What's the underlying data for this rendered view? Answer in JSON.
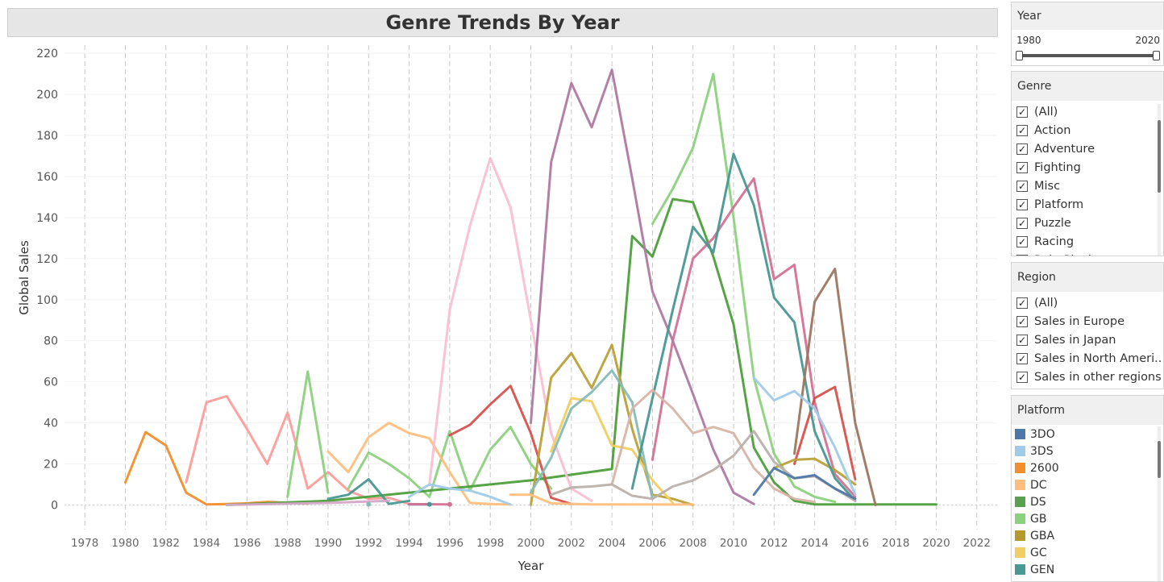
{
  "title": "Genre Trends By Year",
  "chart_data": {
    "type": "line",
    "title": "Genre Trends By Year",
    "xlabel": "Year",
    "ylabel": "Global Sales",
    "xlim": [
      1977,
      2023
    ],
    "ylim": [
      -12,
      224
    ],
    "xticks": [
      "1978",
      "1980",
      "1982",
      "1984",
      "1986",
      "1988",
      "1990",
      "1992",
      "1994",
      "1996",
      "1998",
      "2000",
      "2002",
      "2004",
      "2006",
      "2008",
      "2010",
      "2012",
      "2014",
      "2016",
      "2018",
      "2020",
      "2022"
    ],
    "yticks": [
      "0",
      "20",
      "40",
      "60",
      "80",
      "100",
      "120",
      "140",
      "160",
      "180",
      "200",
      "220"
    ],
    "grid": "vertical dashed",
    "series": [
      {
        "color": "#f28e2b",
        "points": [
          [
            1980,
            11
          ],
          [
            1981,
            35.5
          ],
          [
            1982,
            29
          ],
          [
            1983,
            6
          ],
          [
            1984,
            0.3
          ],
          [
            1985,
            0.5
          ],
          [
            1986,
            0.8
          ],
          [
            1987,
            1.5
          ],
          [
            1988,
            1
          ],
          [
            1989,
            0.7
          ]
        ]
      },
      {
        "color": "#ff9d9a",
        "points": [
          [
            1983,
            11
          ],
          [
            1984,
            50
          ],
          [
            1985,
            53
          ],
          [
            1986,
            37
          ],
          [
            1987,
            20
          ],
          [
            1988,
            45
          ],
          [
            1989,
            8
          ],
          [
            1990,
            16
          ],
          [
            1991,
            7
          ],
          [
            1992,
            3
          ],
          [
            1993,
            3.5
          ],
          [
            1994,
            0.5
          ]
        ]
      },
      {
        "color": "#8cd17d",
        "points": [
          [
            1988,
            4
          ],
          [
            1989,
            65
          ],
          [
            1990,
            6
          ]
        ]
      },
      {
        "color": "#8cd17d",
        "points": [
          [
            1991,
            8
          ],
          [
            1992,
            25.5
          ],
          [
            1993,
            20
          ],
          [
            1994,
            13
          ],
          [
            1995,
            4
          ],
          [
            1996,
            36
          ],
          [
            1997,
            7
          ],
          [
            1998,
            27
          ],
          [
            1999,
            38
          ],
          [
            2000,
            20
          ],
          [
            2001,
            8
          ]
        ]
      },
      {
        "color": "#8cd17d",
        "points": [
          [
            2006,
            137
          ],
          [
            2007,
            154
          ],
          [
            2008,
            174
          ],
          [
            2009,
            210
          ],
          [
            2010,
            140
          ],
          [
            2011,
            62
          ],
          [
            2012,
            25
          ],
          [
            2013,
            9
          ],
          [
            2014,
            4
          ],
          [
            2015,
            1.5
          ]
        ]
      },
      {
        "color": "#ffbe7d",
        "points": [
          [
            1990,
            26
          ],
          [
            1991,
            16
          ],
          [
            1992,
            33
          ],
          [
            1993,
            40
          ],
          [
            1994,
            35
          ],
          [
            1995,
            32.5
          ],
          [
            1996,
            16
          ],
          [
            1997,
            1
          ],
          [
            1998,
            0.5
          ],
          [
            1999,
            0.2
          ]
        ]
      },
      {
        "color": "#4e9f3d",
        "points": [
          [
            1985,
            0
          ],
          [
            1990,
            2
          ],
          [
            1995,
            7
          ],
          [
            2000,
            12
          ],
          [
            2004,
            17.5
          ],
          [
            2005,
            131
          ],
          [
            2006,
            121
          ],
          [
            2007,
            149
          ],
          [
            2008,
            147.5
          ],
          [
            2009,
            121
          ],
          [
            2010,
            88
          ],
          [
            2011,
            28
          ],
          [
            2012,
            11
          ],
          [
            2013,
            2
          ],
          [
            2014,
            0.3
          ],
          [
            2016,
            0.3
          ],
          [
            2020,
            0.3
          ]
        ]
      },
      {
        "color": "#fabfd2",
        "points": [
          [
            1995,
            10
          ],
          [
            1996,
            95
          ],
          [
            1997,
            136
          ],
          [
            1998,
            169
          ],
          [
            1999,
            145
          ],
          [
            2000,
            90
          ],
          [
            2001,
            35
          ],
          [
            2002,
            8
          ],
          [
            2003,
            2
          ]
        ]
      },
      {
        "color": "#d37295",
        "points": [
          [
            2006,
            22
          ],
          [
            2007,
            80
          ],
          [
            2008,
            120
          ],
          [
            2009,
            130
          ],
          [
            2010,
            145
          ],
          [
            2011,
            159
          ],
          [
            2012,
            110
          ],
          [
            2013,
            117
          ],
          [
            2014,
            50
          ],
          [
            2015,
            15
          ],
          [
            2016,
            4
          ]
        ]
      },
      {
        "color": "#b07aa1",
        "points": [
          [
            2000,
            40
          ],
          [
            2001,
            167
          ],
          [
            2002,
            205.5
          ],
          [
            2003,
            184
          ],
          [
            2004,
            212
          ],
          [
            2005,
            159
          ],
          [
            2006,
            104
          ],
          [
            2007,
            80
          ],
          [
            2008,
            54
          ],
          [
            2009,
            27
          ],
          [
            2010,
            6
          ],
          [
            2011,
            0.5
          ]
        ]
      },
      {
        "color": "#d6524f",
        "points": [
          [
            1996,
            34
          ],
          [
            1997,
            39
          ],
          [
            1998,
            49
          ],
          [
            1999,
            58
          ],
          [
            2000,
            35
          ],
          [
            2001,
            3.5
          ],
          [
            2002,
            0.5
          ]
        ]
      },
      {
        "color": "#d6524f",
        "points": [
          [
            2013,
            20
          ],
          [
            2014,
            52
          ],
          [
            2015,
            57.5
          ],
          [
            2016,
            12.5
          ]
        ]
      },
      {
        "color": "#b9a139",
        "points": [
          [
            2000,
            0
          ],
          [
            2001,
            62
          ],
          [
            2002,
            74
          ],
          [
            2003,
            57
          ],
          [
            2004,
            78
          ],
          [
            2005,
            37
          ],
          [
            2006,
            5
          ],
          [
            2007,
            3
          ],
          [
            2008,
            0
          ]
        ]
      },
      {
        "color": "#b9a139",
        "points": [
          [
            2012,
            18
          ],
          [
            2013,
            22
          ],
          [
            2014,
            22.5
          ],
          [
            2015,
            17
          ],
          [
            2016,
            10
          ]
        ]
      },
      {
        "color": "#f1ce63",
        "points": [
          [
            2001,
            26
          ],
          [
            2002,
            52
          ],
          [
            2003,
            50.5
          ],
          [
            2004,
            29
          ],
          [
            2005,
            27
          ],
          [
            2006,
            12
          ],
          [
            2007,
            1
          ]
        ]
      },
      {
        "color": "#86bcb6",
        "points": [
          [
            2000,
            6
          ],
          [
            2001,
            23
          ],
          [
            2002,
            47
          ],
          [
            2003,
            55
          ],
          [
            2004,
            65.5
          ],
          [
            2005,
            50
          ],
          [
            2006,
            3
          ]
        ]
      },
      {
        "color": "#499894",
        "points": [
          [
            1990,
            3
          ],
          [
            1991,
            5
          ],
          [
            1992,
            12.5
          ],
          [
            1993,
            0.5
          ],
          [
            1994,
            2
          ]
        ]
      },
      {
        "color": "#499894",
        "points": [
          [
            2005,
            8
          ],
          [
            2006,
            52
          ],
          [
            2007,
            95
          ],
          [
            2008,
            135.5
          ],
          [
            2009,
            123
          ],
          [
            2010,
            171
          ],
          [
            2011,
            146
          ],
          [
            2012,
            101
          ],
          [
            2013,
            89
          ],
          [
            2014,
            36
          ],
          [
            2015,
            13
          ],
          [
            2016,
            2
          ]
        ]
      },
      {
        "color": "#d4a6c8",
        "points": [
          [
            1985,
            0
          ],
          [
            1990,
            1
          ],
          [
            1993,
            2
          ]
        ]
      },
      {
        "color": "#d7b5a6",
        "points": [
          [
            2004,
            10
          ],
          [
            2005,
            47
          ],
          [
            2006,
            56
          ],
          [
            2007,
            47
          ],
          [
            2008,
            35
          ],
          [
            2009,
            38
          ],
          [
            2010,
            35
          ],
          [
            2011,
            18
          ],
          [
            2012,
            8
          ],
          [
            2013,
            3
          ],
          [
            2014,
            1.5
          ]
        ]
      },
      {
        "color": "#bab0ac",
        "points": [
          [
            2001,
            5
          ],
          [
            2002,
            8.5
          ],
          [
            2003,
            9
          ],
          [
            2004,
            10
          ],
          [
            2005,
            4.5
          ],
          [
            2006,
            3
          ],
          [
            2007,
            9
          ],
          [
            2008,
            12
          ],
          [
            2009,
            17
          ],
          [
            2010,
            24
          ],
          [
            2011,
            36
          ],
          [
            2012,
            21
          ],
          [
            2013,
            13
          ],
          [
            2014,
            14
          ],
          [
            2015,
            8
          ],
          [
            2016,
            2
          ]
        ]
      },
      {
        "color": "#9d7660",
        "points": [
          [
            2013,
            25
          ],
          [
            2014,
            99
          ],
          [
            2015,
            115
          ],
          [
            2016,
            40
          ],
          [
            2017,
            0
          ]
        ]
      },
      {
        "color": "#a0cbe8",
        "points": [
          [
            1994,
            4
          ],
          [
            1995,
            10
          ],
          [
            1996,
            8
          ],
          [
            1997,
            7
          ],
          [
            1998,
            4
          ],
          [
            1999,
            0.2
          ]
        ]
      },
      {
        "color": "#a0cbe8",
        "points": [
          [
            2011,
            62
          ],
          [
            2012,
            51
          ],
          [
            2013,
            55.5
          ],
          [
            2014,
            47
          ],
          [
            2015,
            28
          ],
          [
            2016,
            5
          ]
        ]
      },
      {
        "color": "#4e79a7",
        "points": [
          [
            2011,
            5
          ],
          [
            2012,
            18
          ],
          [
            2013,
            13
          ],
          [
            2014,
            14.5
          ],
          [
            2015,
            8
          ],
          [
            2016,
            3
          ]
        ]
      },
      {
        "color": "#4e79a7",
        "points": [
          [
            1994,
            0.3
          ],
          [
            1995,
            0.3
          ]
        ]
      },
      {
        "color": "#ffbe7d",
        "points": [
          [
            1999,
            5
          ],
          [
            2000,
            5
          ],
          [
            2001,
            0.8
          ],
          [
            2003,
            0.3
          ],
          [
            2008,
            0.2
          ]
        ]
      },
      {
        "color": "#d37295",
        "points": [
          [
            1994,
            0.4
          ],
          [
            1996,
            0.3
          ]
        ]
      }
    ],
    "markers": [
      {
        "color": "#86bcb6",
        "point": [
          1992,
          0.3
        ]
      },
      {
        "color": "#499894",
        "point": [
          1995,
          0.3
        ]
      },
      {
        "color": "#d37295",
        "point": [
          1996,
          0.3
        ]
      }
    ]
  },
  "filters": {
    "year": {
      "label": "Year",
      "min": "1980",
      "max": "2020"
    },
    "genre": {
      "label": "Genre",
      "items": [
        "(All)",
        "Action",
        "Adventure",
        "Fighting",
        "Misc",
        "Platform",
        "Puzzle",
        "Racing",
        "Role-Playing"
      ]
    },
    "region": {
      "label": "Region",
      "items": [
        "(All)",
        "Sales in Europe",
        "Sales in Japan",
        "Sales in North Ameri...",
        "Sales in other regions"
      ]
    },
    "platform": {
      "label": "Platform",
      "items": [
        {
          "name": "3DO",
          "color": "#4e79a7"
        },
        {
          "name": "3DS",
          "color": "#a0cbe8"
        },
        {
          "name": "2600",
          "color": "#f28e2b"
        },
        {
          "name": "DC",
          "color": "#ffbe7d"
        },
        {
          "name": "DS",
          "color": "#59a14f"
        },
        {
          "name": "GB",
          "color": "#8cd17d"
        },
        {
          "name": "GBA",
          "color": "#b6992d"
        },
        {
          "name": "GC",
          "color": "#f1ce63"
        },
        {
          "name": "GEN",
          "color": "#499894"
        },
        {
          "name": "",
          "color": "#86bcb6"
        }
      ]
    }
  }
}
